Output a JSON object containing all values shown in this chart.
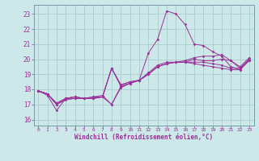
{
  "xlabel": "Windchill (Refroidissement éolien,°C)",
  "bg_color": "#cce8e8",
  "grid_color": "#aacccc",
  "line_color": "#993399",
  "xlim": [
    -0.5,
    23.5
  ],
  "ylim": [
    15.6,
    23.6
  ],
  "yticks": [
    16,
    17,
    18,
    19,
    20,
    21,
    22,
    23
  ],
  "xticks": [
    0,
    1,
    2,
    3,
    4,
    5,
    6,
    7,
    8,
    9,
    10,
    11,
    12,
    13,
    14,
    15,
    16,
    17,
    18,
    19,
    20,
    21,
    22,
    23
  ],
  "lines": [
    {
      "x": [
        0,
        1,
        2,
        3,
        4,
        5,
        6,
        7,
        8,
        9,
        10,
        11,
        12,
        13,
        14,
        15,
        16,
        17,
        18,
        19,
        20,
        21,
        22,
        23
      ],
      "y": [
        17.9,
        17.6,
        16.6,
        17.4,
        17.5,
        17.4,
        17.4,
        17.5,
        19.4,
        18.3,
        18.5,
        18.6,
        20.4,
        21.3,
        23.2,
        23.0,
        22.3,
        21.0,
        20.9,
        20.5,
        20.2,
        19.5,
        19.3,
        19.9
      ]
    },
    {
      "x": [
        0,
        1,
        2,
        3,
        4,
        5,
        6,
        7,
        8,
        9,
        10,
        11,
        12,
        13,
        14,
        15,
        16,
        17,
        18,
        19,
        20,
        21,
        22,
        23
      ],
      "y": [
        17.9,
        17.7,
        17.0,
        17.4,
        17.5,
        17.4,
        17.5,
        17.6,
        17.0,
        18.1,
        18.4,
        18.6,
        19.0,
        19.5,
        19.7,
        19.8,
        19.8,
        19.7,
        19.6,
        19.5,
        19.4,
        19.3,
        19.3,
        20.0
      ]
    },
    {
      "x": [
        0,
        1,
        2,
        3,
        4,
        5,
        6,
        7,
        8,
        9,
        10,
        11,
        12,
        13,
        14,
        15,
        16,
        17,
        18,
        19,
        20,
        21,
        22,
        23
      ],
      "y": [
        17.9,
        17.7,
        17.0,
        17.3,
        17.4,
        17.4,
        17.4,
        17.5,
        19.4,
        18.3,
        18.5,
        18.6,
        19.1,
        19.6,
        19.8,
        19.8,
        19.8,
        19.8,
        19.8,
        19.7,
        19.6,
        19.4,
        19.4,
        20.0
      ]
    },
    {
      "x": [
        0,
        1,
        2,
        3,
        4,
        5,
        6,
        7,
        8,
        9,
        10,
        11,
        12,
        13,
        14,
        15,
        16,
        17,
        18,
        19,
        20,
        21,
        22,
        23
      ],
      "y": [
        17.9,
        17.7,
        17.1,
        17.4,
        17.5,
        17.4,
        17.4,
        17.5,
        19.4,
        18.2,
        18.4,
        18.6,
        19.0,
        19.5,
        19.7,
        19.8,
        19.8,
        20.0,
        19.9,
        19.9,
        20.0,
        19.9,
        19.4,
        19.9
      ]
    },
    {
      "x": [
        0,
        1,
        2,
        3,
        4,
        5,
        6,
        7,
        8,
        9,
        10,
        11,
        12,
        13,
        14,
        15,
        16,
        17,
        18,
        19,
        20,
        21,
        22,
        23
      ],
      "y": [
        17.9,
        17.7,
        17.0,
        17.4,
        17.4,
        17.4,
        17.5,
        17.5,
        17.0,
        18.2,
        18.4,
        18.6,
        19.0,
        19.5,
        19.7,
        19.8,
        19.9,
        20.1,
        20.2,
        20.2,
        20.3,
        19.9,
        19.5,
        20.1
      ]
    }
  ]
}
